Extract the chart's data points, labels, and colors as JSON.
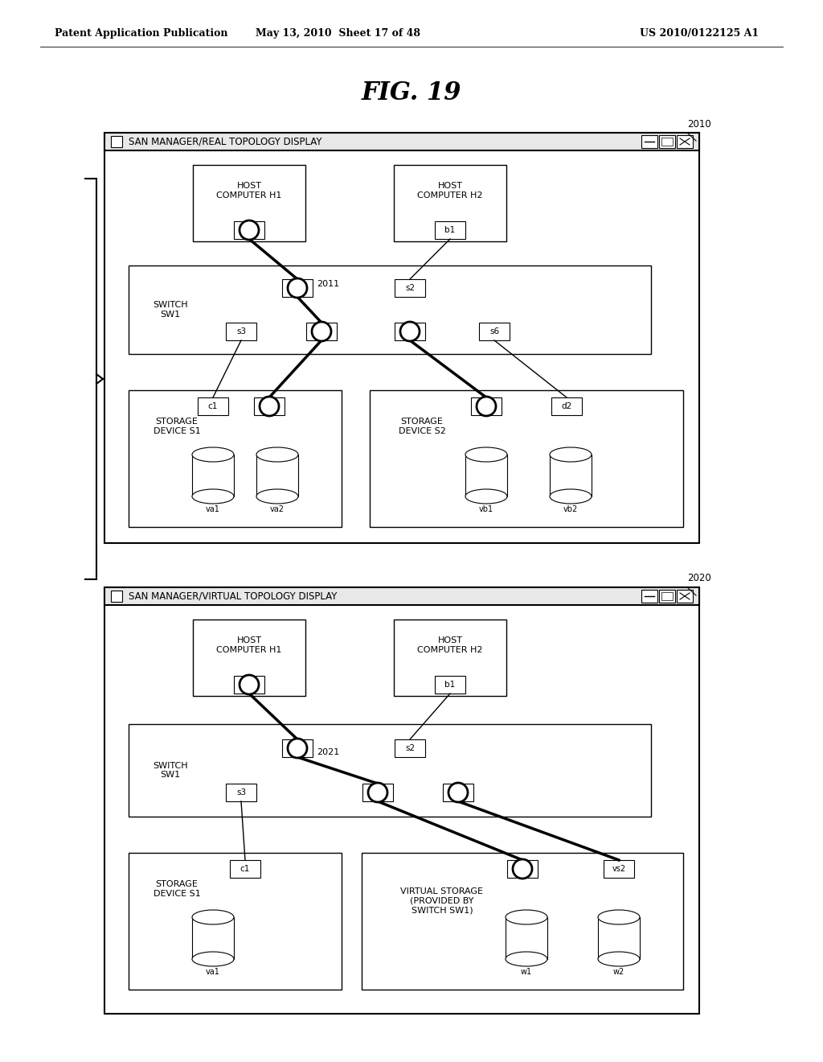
{
  "title": "FIG. 19",
  "header_left": "Patent Application Publication",
  "header_mid": "May 13, 2010  Sheet 17 of 48",
  "header_right": "US 2010/0122125 A1",
  "bg_color": "#ffffff",
  "d1_title": "SAN MANAGER/REAL TOPOLOGY DISPLAY",
  "d2_title": "SAN MANAGER/VIRTUAL TOPOLOGY DISPLAY",
  "label_2010": "2010",
  "label_2011": "2011",
  "label_2020": "2020",
  "label_2021": "2021"
}
